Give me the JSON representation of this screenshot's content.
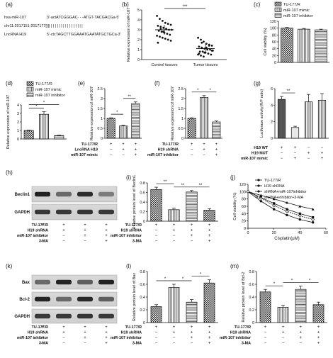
{
  "panels": {
    "a": {
      "letter": "(a)",
      "rows": [
        {
          "label": "hsa-miR-107",
          "seq": "3'-actATCGGGAC- - -ATGT-TACGACGa-5'"
        },
        {
          "label": "chr11:2017151-2017177[-]",
          "seq": "| | | | | | |           | | | |   | | | | | | |"
        },
        {
          "label": "LncRNA H19",
          "seq": "5'-ctcTAGCTTGGAAATGAATATGCTGCa-3'"
        }
      ]
    },
    "b": {
      "letter": "(b)",
      "chart_data": {
        "type": "scatter",
        "categories": [
          "Control tissues",
          "Tumor tissues"
        ],
        "ylabel": "Relative expression of miR-107",
        "ylim": [
          0,
          5
        ],
        "yticks": [
          0,
          1,
          2,
          3,
          4,
          5
        ],
        "means": [
          3.0,
          1.1
        ],
        "points": [
          [
            4.4,
            4.1,
            3.9,
            3.7,
            3.6,
            3.5,
            3.4,
            3.3,
            3.2,
            3.1,
            3.0,
            3.0,
            2.9,
            2.8,
            2.7,
            2.6,
            2.5,
            2.4,
            2.3,
            2.2,
            2.1,
            2.0,
            1.9,
            1.7,
            3.1,
            2.8
          ],
          [
            2.2,
            2.0,
            1.8,
            1.6,
            1.5,
            1.4,
            1.3,
            1.2,
            1.1,
            1.0,
            1.0,
            0.9,
            0.8,
            0.8,
            0.7,
            0.6,
            0.5,
            0.5,
            0.4,
            0.3,
            1.2,
            1.4,
            0.9,
            0.6,
            1.7,
            0.7
          ]
        ],
        "significance": "***"
      }
    },
    "c": {
      "letter": "(c)",
      "legend": [
        "TU-177/R",
        "miR-107 mimic",
        "miR-107 inhibitor"
      ],
      "chart_data": {
        "type": "bar",
        "categories": [
          "TU-177/R",
          "miR-107 mimic",
          "miR-107 inhibitor"
        ],
        "values": [
          100,
          97,
          95
        ],
        "errors": [
          2,
          2,
          2
        ],
        "ylabel": "Cell viability (%)",
        "ylim": [
          0,
          120
        ],
        "yticks": [
          0,
          20,
          40,
          60,
          80,
          100,
          120
        ]
      }
    },
    "d": {
      "letter": "(d)",
      "legend": [
        "TU-177/R",
        "miR-107 mimic",
        "miR-107 inhibitor"
      ],
      "chart_data": {
        "type": "bar",
        "categories": [
          "TU-177/R",
          "miR-107 mimic",
          "miR-107 inhibitor"
        ],
        "values": [
          1.0,
          2.9,
          0.4
        ],
        "errors": [
          0.05,
          0.3,
          0.05
        ],
        "ylabel": "Relative expression of miR-107",
        "ylim": [
          0,
          4
        ],
        "yticks": [
          0,
          1,
          2,
          3,
          4
        ],
        "sig": [
          {
            "from": 0,
            "to": 1,
            "label": "*"
          },
          {
            "from": 0,
            "to": 2,
            "label": "*"
          }
        ]
      }
    },
    "e": {
      "letter": "(e)",
      "chart_data": {
        "type": "bar",
        "values": [
          1.0,
          0.62,
          1.75
        ],
        "errors": [
          0.03,
          0.04,
          0.08
        ],
        "ylabel": "Relative expression of miR-107",
        "ylim": [
          0,
          2.5
        ],
        "yticks": [
          0.0,
          0.5,
          1.0,
          1.5,
          2.0,
          2.5
        ],
        "sig": [
          {
            "from": 0,
            "to": 1,
            "label": "*"
          },
          {
            "from": 1,
            "to": 2,
            "label": "**"
          }
        ]
      },
      "conditions": [
        {
          "label": "TU-177/R",
          "signs": [
            "+",
            "+",
            "+"
          ]
        },
        {
          "label": "LncRNA H19",
          "signs": [
            "−",
            "+",
            "+"
          ]
        },
        {
          "label": "miR-107 mimic",
          "signs": [
            "−",
            "−",
            "+"
          ]
        }
      ]
    },
    "f": {
      "letter": "(f)",
      "chart_data": {
        "type": "bar",
        "values": [
          1.0,
          2.05,
          0.82
        ],
        "errors": [
          0.03,
          0.1,
          0.05
        ],
        "ylabel": "Relative expression of miR-107",
        "ylim": [
          0,
          2.5
        ],
        "yticks": [
          0.0,
          0.5,
          1.0,
          1.5,
          2.0,
          2.5
        ],
        "sig": [
          {
            "from": 0,
            "to": 1,
            "label": "*"
          },
          {
            "from": 1,
            "to": 2,
            "label": "*"
          }
        ]
      },
      "conditions": [
        {
          "label": "TU-177/R",
          "signs": [
            "+",
            "+",
            "+"
          ]
        },
        {
          "label": "H19 shRNA",
          "signs": [
            "−",
            "+",
            "+"
          ]
        },
        {
          "label": "miR-107 inhibitor",
          "signs": [
            "−",
            "−",
            "+"
          ]
        }
      ]
    },
    "g": {
      "letter": "(g)",
      "chart_data": {
        "type": "bar",
        "values": [
          4.7,
          1.3,
          4.4,
          4.6
        ],
        "errors": [
          0.35,
          0.15,
          0.9,
          0.8
        ],
        "ylabel": "Luciferase activity(R/F ratio)",
        "ylim": [
          0,
          6
        ],
        "yticks": [
          0,
          2,
          4,
          6
        ],
        "sig": [
          {
            "from": 0,
            "to": 1,
            "label": "**"
          }
        ]
      },
      "conditions": [
        {
          "label": "H19 WT",
          "signs": [
            "+",
            "+",
            "−",
            "−"
          ]
        },
        {
          "label": "H19 MUT",
          "signs": [
            "−",
            "−",
            "+",
            "+"
          ]
        },
        {
          "label": "miR-107 mimic",
          "signs": [
            "−",
            "+",
            "−",
            "+"
          ]
        }
      ]
    },
    "h": {
      "letter": "(h)",
      "blot_labels": [
        "Beclin1",
        "GAPDH"
      ],
      "conditions": [
        {
          "label": "TU-177/R",
          "signs": [
            "+",
            "+",
            "+",
            "+"
          ]
        },
        {
          "label": "H19 shRNA",
          "signs": [
            "−",
            "+",
            "+",
            "+"
          ]
        },
        {
          "label": "miR-107 inhibitor",
          "signs": [
            "−",
            "−",
            "+",
            "+"
          ]
        },
        {
          "label": "3-MA",
          "signs": [
            "−",
            "−",
            "−",
            "+"
          ]
        }
      ]
    },
    "i": {
      "letter": "(i)",
      "chart_data": {
        "type": "bar",
        "values": [
          0.66,
          0.24,
          0.61,
          0.23
        ],
        "errors": [
          0.05,
          0.03,
          0.03,
          0.03
        ],
        "ylabel": "Relative protein level of Beclin1",
        "ylim": [
          0,
          0.8
        ],
        "yticks": [
          0.0,
          0.2,
          0.4,
          0.6,
          0.8
        ],
        "sig": [
          {
            "from": 0,
            "to": 1,
            "label": "**"
          },
          {
            "from": 1,
            "to": 2,
            "label": "**"
          },
          {
            "from": 2,
            "to": 3,
            "label": "**"
          }
        ]
      },
      "conditions": [
        {
          "label": "TU-177/R",
          "signs": [
            "+",
            "+",
            "+",
            "+"
          ]
        },
        {
          "label": "H19 shRNA",
          "signs": [
            "−",
            "+",
            "+",
            "+"
          ]
        },
        {
          "label": "miR-107 inhibitor",
          "signs": [
            "−",
            "−",
            "+",
            "+"
          ]
        },
        {
          "label": "3-MA",
          "signs": [
            "−",
            "−",
            "−",
            "+"
          ]
        }
      ]
    },
    "j": {
      "letter": "(j)",
      "chart_data": {
        "type": "line",
        "x": [
          0,
          10,
          20,
          30,
          40,
          50
        ],
        "xlabel": "Cisplatin(μM)",
        "ylabel": "Cell viability (%)",
        "xlim": [
          0,
          60
        ],
        "xticks": [
          0,
          20,
          40,
          60
        ],
        "ylim": [
          0,
          120
        ],
        "yticks": [
          0,
          20,
          40,
          60,
          80,
          100,
          120
        ],
        "series": [
          {
            "name": "TU-177/R",
            "values": [
              100,
              84,
              68,
              52,
              40,
              30
            ]
          },
          {
            "name": "H19 shRNA",
            "values": [
              100,
              74,
              52,
              36,
              24,
              16
            ]
          },
          {
            "name": "shRNA+miR-107inhibitor",
            "values": [
              100,
              90,
              80,
              70,
              60,
              52
            ]
          },
          {
            "name": "shRNA+inhibitor+3-MA",
            "values": [
              100,
              82,
              62,
              46,
              34,
              24
            ]
          }
        ]
      }
    },
    "k": {
      "letter": "(k)",
      "blot_labels": [
        "Bax",
        "Bcl-2",
        "GAPDH"
      ],
      "conditions": [
        {
          "label": "TU-177/R",
          "signs": [
            "+",
            "+",
            "+",
            "+"
          ]
        },
        {
          "label": "H19 shRNA",
          "signs": [
            "−",
            "+",
            "+",
            "+"
          ]
        },
        {
          "label": "miR-107 inhibitor",
          "signs": [
            "−",
            "−",
            "+",
            "+"
          ]
        },
        {
          "label": "3-MA",
          "signs": [
            "−",
            "−",
            "−",
            "+"
          ]
        }
      ]
    },
    "l": {
      "letter": "(l)",
      "chart_data": {
        "type": "bar",
        "values": [
          0.25,
          0.55,
          0.32,
          0.62
        ],
        "errors": [
          0.03,
          0.05,
          0.04,
          0.05
        ],
        "ylabel": "Relative protein level of Bax",
        "ylim": [
          0,
          0.8
        ],
        "yticks": [
          0.0,
          0.2,
          0.4,
          0.6,
          0.8
        ],
        "sig": [
          {
            "from": 0,
            "to": 1,
            "label": "*"
          },
          {
            "from": 1,
            "to": 2,
            "label": "*"
          },
          {
            "from": 2,
            "to": 3,
            "label": "*"
          }
        ]
      },
      "conditions": [
        {
          "label": "TU-177/R",
          "signs": [
            "+",
            "+",
            "+",
            "+"
          ]
        },
        {
          "label": "H19 shRNA",
          "signs": [
            "−",
            "+",
            "+",
            "+"
          ]
        },
        {
          "label": "miR-107 inhibitor",
          "signs": [
            "−",
            "−",
            "+",
            "+"
          ]
        },
        {
          "label": "3-MA",
          "signs": [
            "−",
            "−",
            "−",
            "+"
          ]
        }
      ]
    },
    "m": {
      "letter": "(m)",
      "chart_data": {
        "type": "bar",
        "values": [
          0.48,
          0.24,
          0.52,
          0.28
        ],
        "errors": [
          0.04,
          0.03,
          0.05,
          0.04
        ],
        "ylabel": "Relative protein level of Bcl-2",
        "ylim": [
          0,
          0.8
        ],
        "yticks": [
          0.0,
          0.2,
          0.4,
          0.6,
          0.8
        ],
        "sig": [
          {
            "from": 0,
            "to": 1,
            "label": "*"
          },
          {
            "from": 1,
            "to": 2,
            "label": "*"
          },
          {
            "from": 2,
            "to": 3,
            "label": "*"
          }
        ]
      },
      "conditions": [
        {
          "label": "TU-177/R",
          "signs": [
            "+",
            "+",
            "+",
            "+"
          ]
        },
        {
          "label": "H19 shRNA",
          "signs": [
            "−",
            "+",
            "+",
            "+"
          ]
        },
        {
          "label": "miR-107 inhibitor",
          "signs": [
            "−",
            "−",
            "+",
            "+"
          ]
        },
        {
          "label": "3-MA",
          "signs": [
            "−",
            "−",
            "−",
            "+"
          ]
        }
      ]
    }
  }
}
